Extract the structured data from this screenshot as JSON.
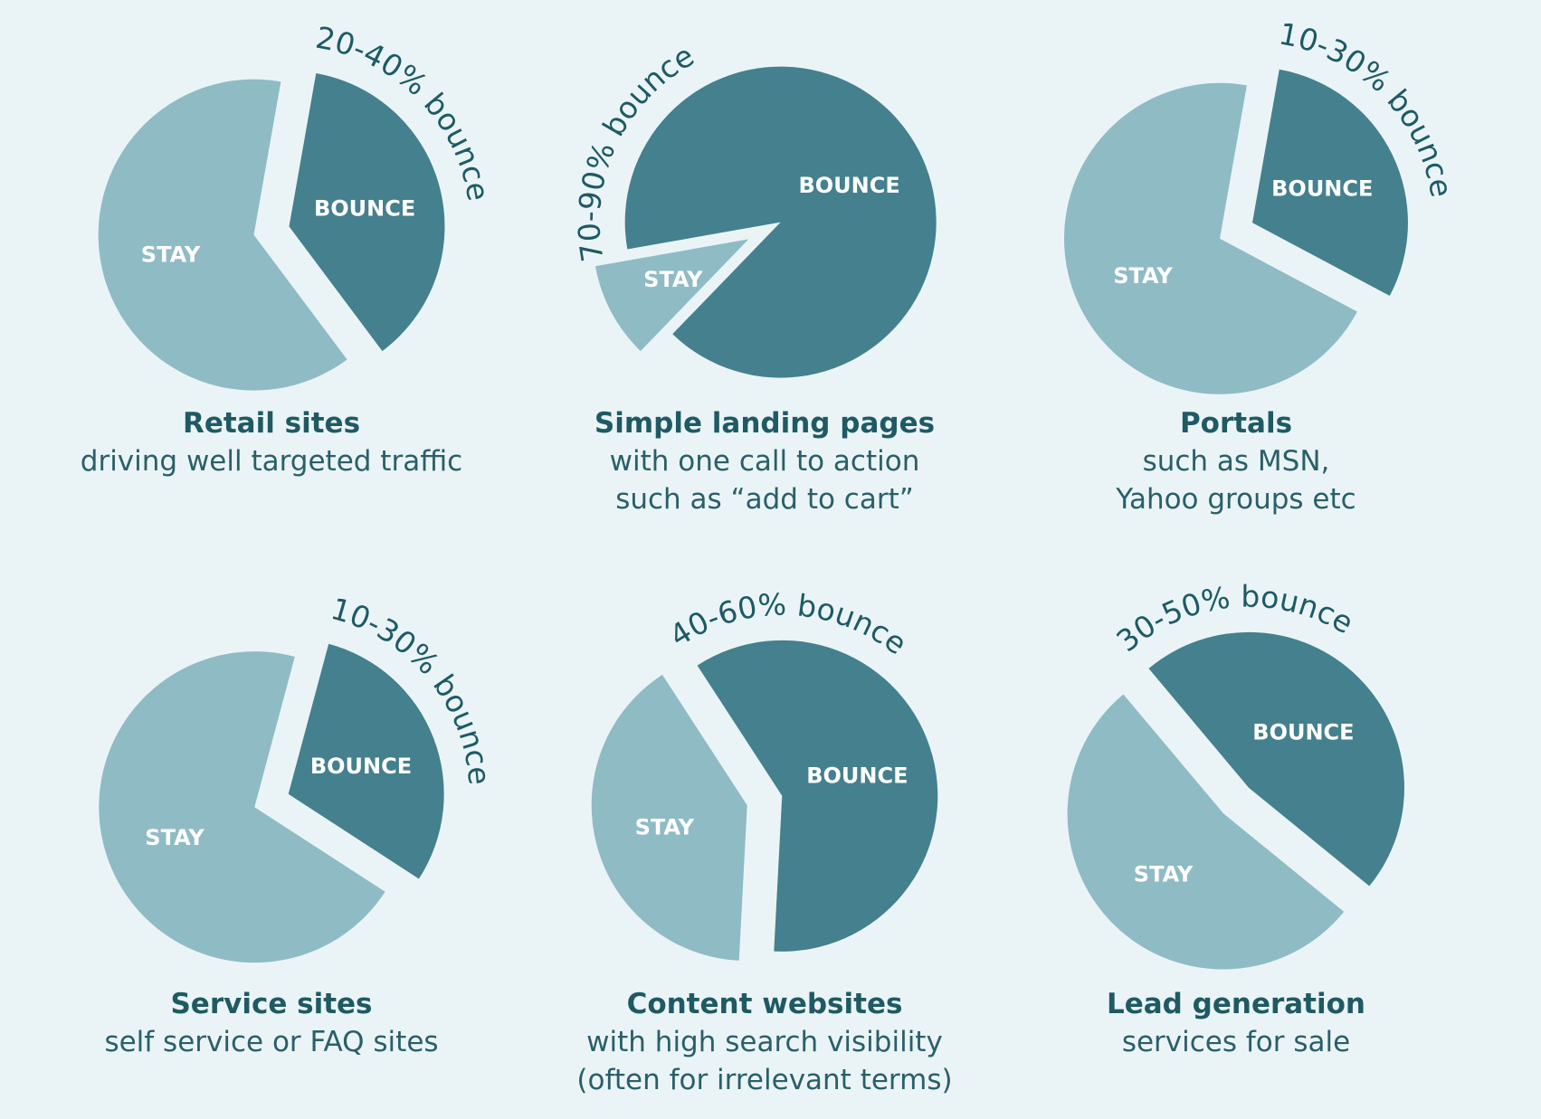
{
  "colors": {
    "background": "#eaf4f6",
    "bounce": "#44808d",
    "stay": "#8fbbc5",
    "text": "#1f5a63"
  },
  "chart_data": [
    {
      "type": "pie",
      "title": "Retail sites",
      "subtitle": [
        "driving well targeted traffic"
      ],
      "bounce_label": "20-40% bounce",
      "bounce_range": [
        20,
        40
      ],
      "slices": [
        {
          "label": "BOUNCE",
          "value": 37
        },
        {
          "label": "STAY",
          "value": 63
        }
      ]
    },
    {
      "type": "pie",
      "title": "Simple landing pages",
      "subtitle": [
        "with one call to action",
        "such as “add to cart”"
      ],
      "bounce_label": "70-90% bounce",
      "bounce_range": [
        70,
        90
      ],
      "slices": [
        {
          "label": "BOUNCE",
          "value": 90
        },
        {
          "label": "STAY",
          "value": 10
        }
      ]
    },
    {
      "type": "pie",
      "title": "Portals",
      "subtitle": [
        "such as MSN,",
        "Yahoo groups etc"
      ],
      "bounce_label": "10-30% bounce",
      "bounce_range": [
        10,
        30
      ],
      "slices": [
        {
          "label": "BOUNCE",
          "value": 30
        },
        {
          "label": "STAY",
          "value": 70
        }
      ]
    },
    {
      "type": "pie",
      "title": "Service sites",
      "subtitle": [
        "self service or FAQ sites"
      ],
      "bounce_label": "10-30% bounce",
      "bounce_range": [
        10,
        30
      ],
      "slices": [
        {
          "label": "BOUNCE",
          "value": 30
        },
        {
          "label": "STAY",
          "value": 70
        }
      ]
    },
    {
      "type": "pie",
      "title": "Content websites",
      "subtitle": [
        "with high search visibility",
        "(often for irrelevant terms)"
      ],
      "bounce_label": "40-60% bounce",
      "bounce_range": [
        40,
        60
      ],
      "slices": [
        {
          "label": "BOUNCE",
          "value": 60
        },
        {
          "label": "STAY",
          "value": 40
        }
      ]
    },
    {
      "type": "pie",
      "title": "Lead generation",
      "subtitle": [
        "services for sale"
      ],
      "bounce_label": "30-50% bounce",
      "bounce_range": [
        30,
        50
      ],
      "slices": [
        {
          "label": "BOUNCE",
          "value": 47
        },
        {
          "label": "STAY",
          "value": 53
        }
      ]
    }
  ]
}
